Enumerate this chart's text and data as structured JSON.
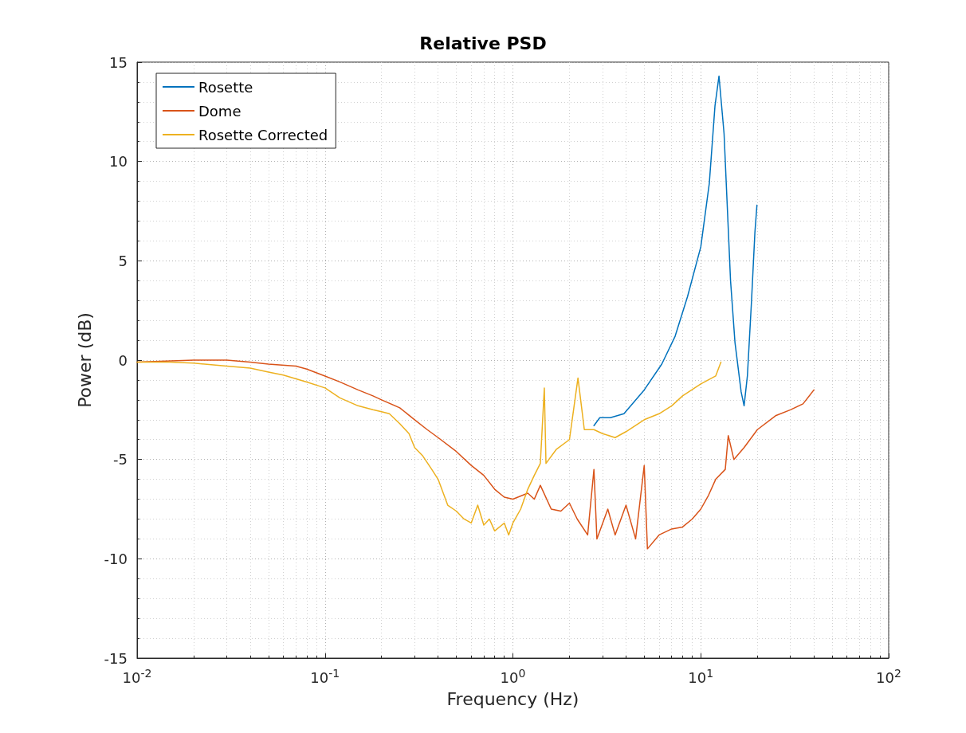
{
  "chart_data": {
    "type": "line",
    "title": "Relative PSD",
    "xlabel": "Frequency (Hz)",
    "ylabel": "Power (dB)",
    "log": "x",
    "xlim": [
      0.01,
      100
    ],
    "xticks": [
      {
        "value": 0.01,
        "label": "10$^{-2}$"
      },
      {
        "value": 0.1,
        "label": "10$^{-1}$"
      },
      {
        "value": 1,
        "label": "10$^{0}$"
      },
      {
        "value": 10,
        "label": "10$^{1}$"
      },
      {
        "value": 100,
        "label": "10$^{2}$"
      }
    ],
    "ylim": [
      -15,
      15
    ],
    "yticks": [
      -15,
      -10,
      -5,
      0,
      5,
      10,
      15
    ],
    "grid": true,
    "legend": "top left",
    "line_style": "solid",
    "marker": "none",
    "series": [
      {
        "name": "Rosette",
        "color": "#0072bd",
        "x": [
          2.7,
          2.9,
          3.3,
          3.9,
          5.0,
          6.2,
          7.3,
          8.5,
          10.0,
          11.1,
          11.9,
          12.5,
          13.3,
          13.9,
          14.4,
          15.2,
          16.4,
          17.0,
          17.7,
          18.6,
          19.4,
          19.9
        ],
        "values": [
          -3.3,
          -2.9,
          -2.9,
          -2.7,
          -1.5,
          -0.2,
          1.2,
          3.2,
          5.7,
          8.9,
          12.8,
          14.3,
          11.4,
          7.3,
          4.0,
          0.9,
          -1.6,
          -2.3,
          -0.8,
          2.9,
          6.4,
          7.8
        ]
      },
      {
        "name": "Dome",
        "color": "#d95319",
        "x": [
          0.01,
          0.02,
          0.03,
          0.04,
          0.05,
          0.07,
          0.08,
          0.1,
          0.12,
          0.15,
          0.18,
          0.2,
          0.25,
          0.3,
          0.35,
          0.4,
          0.5,
          0.6,
          0.7,
          0.8,
          0.9,
          1.0,
          1.2,
          1.3,
          1.4,
          1.6,
          1.8,
          2.0,
          2.2,
          2.5,
          2.7,
          2.8,
          3.2,
          3.5,
          4,
          4.5,
          5,
          5.2,
          6,
          7,
          8,
          9,
          10,
          11,
          12,
          13.5,
          14,
          15,
          17,
          20,
          25,
          30,
          35,
          40
        ],
        "values": [
          -0.1,
          0,
          0,
          -0.1,
          -0.2,
          -0.3,
          -0.45,
          -0.8,
          -1.1,
          -1.5,
          -1.8,
          -2.0,
          -2.4,
          -3.0,
          -3.5,
          -3.9,
          -4.6,
          -5.3,
          -5.8,
          -6.5,
          -6.9,
          -7.0,
          -6.7,
          -7.0,
          -6.3,
          -7.5,
          -7.6,
          -7.2,
          -8.0,
          -8.8,
          -5.5,
          -9.0,
          -7.5,
          -8.8,
          -7.3,
          -9.0,
          -5.3,
          -9.5,
          -8.8,
          -8.5,
          -8.4,
          -8.0,
          -7.5,
          -6.8,
          -6.0,
          -5.5,
          -3.8,
          -5.0,
          -4.4,
          -3.5,
          -2.8,
          -2.5,
          -2.2,
          -1.5
        ]
      },
      {
        "name": "Rosette Corrected",
        "color": "#edb120",
        "x": [
          0.01,
          0.015,
          0.02,
          0.03,
          0.04,
          0.05,
          0.06,
          0.08,
          0.1,
          0.12,
          0.15,
          0.18,
          0.2,
          0.22,
          0.25,
          0.28,
          0.3,
          0.33,
          0.37,
          0.4,
          0.45,
          0.5,
          0.55,
          0.6,
          0.65,
          0.7,
          0.75,
          0.8,
          0.9,
          0.95,
          1.0,
          1.1,
          1.2,
          1.3,
          1.4,
          1.47,
          1.5,
          1.7,
          2.0,
          2.22,
          2.4,
          2.7,
          3.0,
          3.5,
          4.0,
          5.0,
          6.0,
          7.0,
          8.0,
          10.0,
          12.0,
          12.8
        ],
        "values": [
          -0.1,
          -0.1,
          -0.15,
          -0.3,
          -0.4,
          -0.6,
          -0.75,
          -1.1,
          -1.4,
          -1.9,
          -2.3,
          -2.5,
          -2.6,
          -2.7,
          -3.2,
          -3.7,
          -4.4,
          -4.8,
          -5.5,
          -6.0,
          -7.3,
          -7.6,
          -8.0,
          -8.2,
          -7.3,
          -8.3,
          -8.0,
          -8.6,
          -8.2,
          -8.8,
          -8.2,
          -7.5,
          -6.5,
          -5.8,
          -5.2,
          -1.4,
          -5.2,
          -4.5,
          -4.0,
          -0.9,
          -3.5,
          -3.5,
          -3.7,
          -3.9,
          -3.6,
          -3.0,
          -2.7,
          -2.3,
          -1.8,
          -1.2,
          -0.8,
          -0.1
        ]
      }
    ]
  }
}
